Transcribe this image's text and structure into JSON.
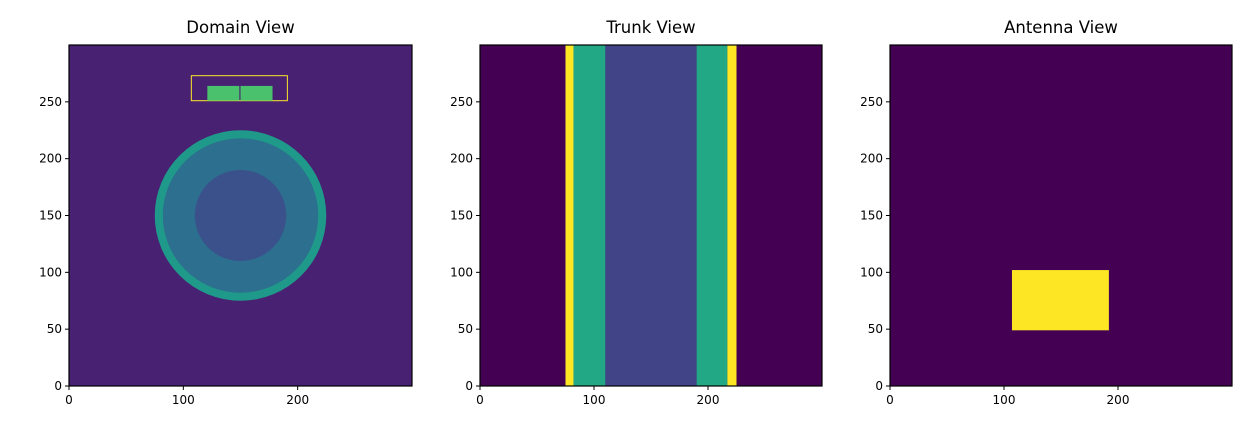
{
  "chart_data": [
    {
      "type": "heatmap",
      "title": "Domain View",
      "xlim": [
        0,
        300
      ],
      "ylim": [
        0,
        300
      ],
      "xticks": [
        0,
        100,
        200
      ],
      "yticks": [
        0,
        50,
        100,
        150,
        200,
        250
      ],
      "grid": false,
      "colormap": "viridis",
      "background": "#482173",
      "regions": [
        {
          "shape": "circle",
          "cx": 150,
          "cy": 150,
          "r": 75,
          "color": "#1f9a8a"
        },
        {
          "shape": "circle",
          "cx": 150,
          "cy": 150,
          "r": 68,
          "color": "#2d6f8e"
        },
        {
          "shape": "circle",
          "cx": 150,
          "cy": 150,
          "r": 40,
          "color": "#3b518b"
        },
        {
          "shape": "rect",
          "x0": 107,
          "x1": 191,
          "y0": 251,
          "y1": 273,
          "color": "#482173",
          "outline": "#fde725"
        },
        {
          "shape": "rect",
          "x0": 121,
          "x1": 149,
          "y0": 251,
          "y1": 264,
          "color": "#4ac16d"
        },
        {
          "shape": "rect",
          "x0": 150,
          "x1": 178,
          "y0": 251,
          "y1": 264,
          "color": "#4ac16d"
        }
      ]
    },
    {
      "type": "heatmap",
      "title": "Trunk View",
      "xlim": [
        0,
        300
      ],
      "ylim": [
        0,
        300
      ],
      "xticks": [
        0,
        100,
        200
      ],
      "yticks": [
        0,
        50,
        100,
        150,
        200,
        250
      ],
      "grid": false,
      "colormap": "viridis",
      "background": "#440154",
      "regions": [
        {
          "shape": "rect",
          "x0": 75,
          "x1": 82,
          "y0": 0,
          "y1": 300,
          "color": "#fde725"
        },
        {
          "shape": "rect",
          "x0": 82,
          "x1": 110,
          "y0": 0,
          "y1": 300,
          "color": "#22a884"
        },
        {
          "shape": "rect",
          "x0": 110,
          "x1": 190,
          "y0": 0,
          "y1": 300,
          "color": "#414487"
        },
        {
          "shape": "rect",
          "x0": 190,
          "x1": 217,
          "y0": 0,
          "y1": 300,
          "color": "#22a884"
        },
        {
          "shape": "rect",
          "x0": 217,
          "x1": 225,
          "y0": 0,
          "y1": 300,
          "color": "#fde725"
        }
      ]
    },
    {
      "type": "heatmap",
      "title": "Antenna View",
      "xlim": [
        0,
        300
      ],
      "ylim": [
        0,
        300
      ],
      "xticks": [
        0,
        100,
        200
      ],
      "yticks": [
        0,
        50,
        100,
        150,
        200,
        250
      ],
      "grid": false,
      "colormap": "viridis",
      "background": "#440154",
      "regions": [
        {
          "shape": "rect",
          "x0": 107,
          "x1": 192,
          "y0": 49,
          "y1": 102,
          "color": "#fde725"
        }
      ]
    }
  ]
}
